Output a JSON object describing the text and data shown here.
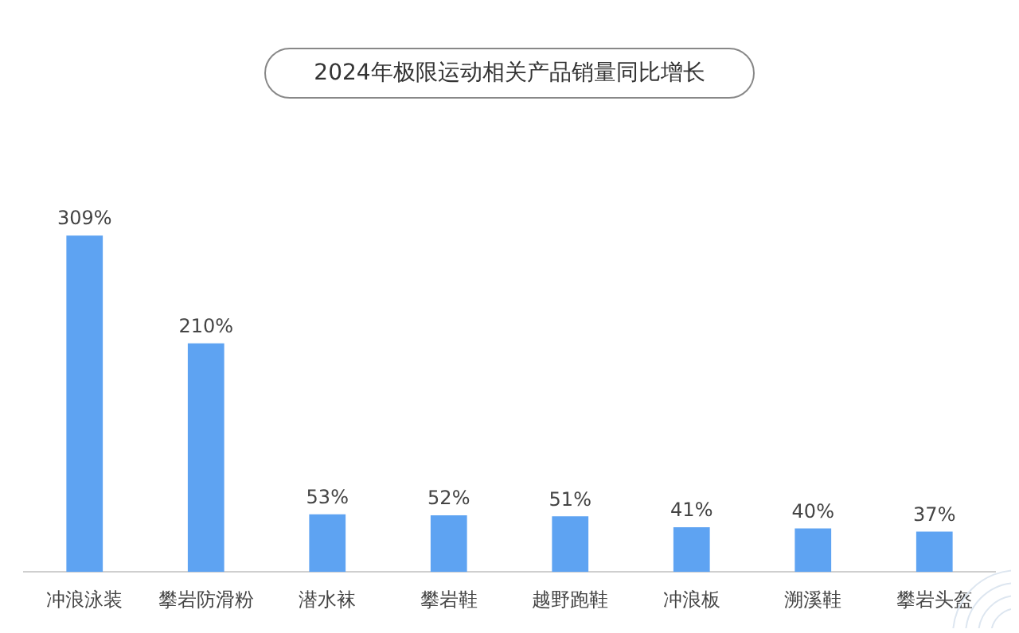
{
  "chart_data": {
    "type": "bar",
    "title": "2024年极限运动相关产品销量同比增长",
    "categories": [
      "冲浪泳装",
      "攀岩防滑粉",
      "潜水袜",
      "攀岩鞋",
      "越野跑鞋",
      "冲浪板",
      "溯溪鞋",
      "攀岩头盔"
    ],
    "values": [
      309,
      210,
      53,
      52,
      51,
      41,
      40,
      37
    ],
    "value_labels": [
      "309%",
      "210%",
      "53%",
      "52%",
      "51%",
      "41%",
      "40%",
      "37%"
    ],
    "color": "#5ea3f2"
  }
}
